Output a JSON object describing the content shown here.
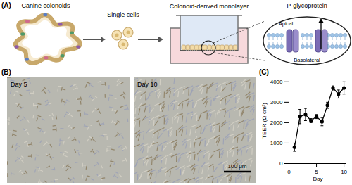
{
  "panels": {
    "A": {
      "label": "(A)",
      "steps": [
        "Canine colonoids",
        "Single cells",
        "Colonoid-derived monolayer"
      ],
      "inset": {
        "title": "P-glycoprotein",
        "top": "Apical",
        "bottom": "Basolateral"
      }
    },
    "B": {
      "label": "(B)",
      "images": [
        "Day 5",
        "Day 10"
      ],
      "scale_bar": "100 μm"
    },
    "C": {
      "label": "(C)"
    }
  },
  "chart_data": {
    "type": "line",
    "x_label": "Day",
    "y_label": "TEER (Ω·cm²)",
    "x": [
      1,
      2,
      3,
      4,
      5,
      6,
      7,
      8,
      9,
      10
    ],
    "series": [
      {
        "color": "#000000",
        "marker": "circle",
        "line_style": "solid",
        "values": [
          800,
          2300,
          2400,
          2100,
          2300,
          2050,
          2850,
          3700,
          3400,
          3700
        ],
        "errors": [
          200,
          350,
          300,
          100,
          100,
          200,
          150,
          100,
          200,
          300
        ]
      }
    ],
    "xlim": [
      0,
      10.5
    ],
    "xticks": [
      0,
      5,
      10
    ],
    "ylim": [
      0,
      4200
    ],
    "yticks": [
      0,
      1000,
      2000,
      3000,
      4000
    ]
  }
}
